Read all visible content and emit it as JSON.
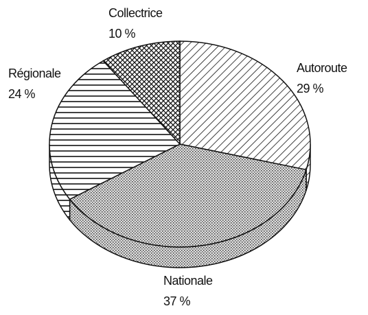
{
  "chart_data": {
    "type": "pie",
    "categories": [
      "Autoroute",
      "Nationale",
      "Régionale",
      "Collectrice"
    ],
    "values": [
      29,
      37,
      24,
      10
    ],
    "value_labels": [
      "29 %",
      "37 %",
      "24 %",
      "10 %"
    ]
  }
}
